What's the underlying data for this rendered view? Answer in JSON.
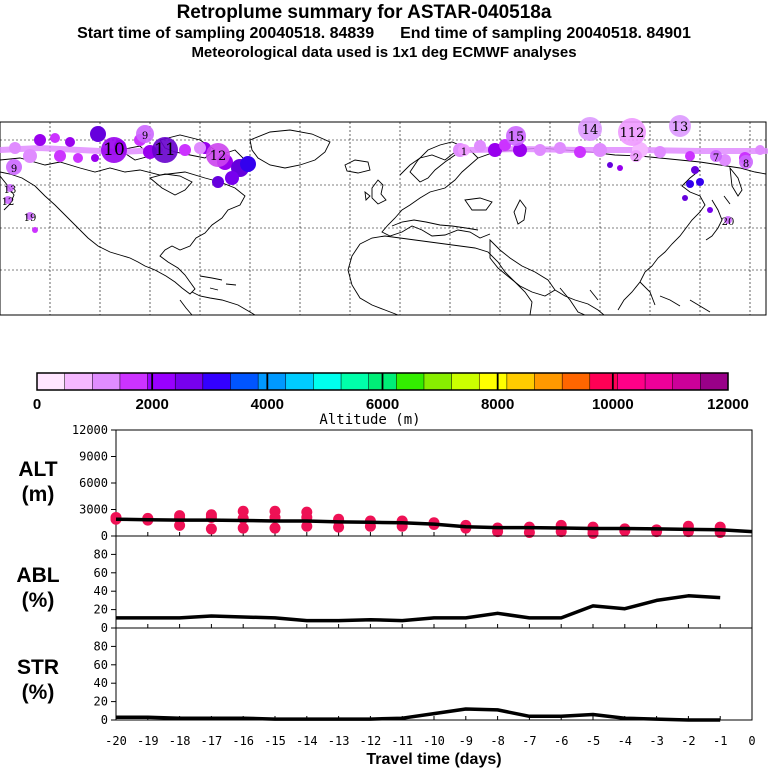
{
  "header": {
    "title": "Retroplume summary for ASTAR-040518a",
    "start_label": "Start time of sampling 20040518. 84839",
    "end_label": "End time of sampling 20040518. 84901",
    "met_label": "Meteorological data used is 1x1 deg ECMWF analyses"
  },
  "map": {
    "markers": [
      {
        "label": "9",
        "color": "#cc66ff",
        "r": "small"
      },
      {
        "label": "10",
        "color": "#9900ee",
        "r": "large"
      },
      {
        "label": "11",
        "color": "#6600cc",
        "r": "large"
      },
      {
        "label": "12",
        "color": "#cc44ee",
        "r": "medium"
      },
      {
        "label": "13",
        "color": "#dd99ff",
        "r": "medium"
      },
      {
        "label": "14",
        "color": "#dd99ff",
        "r": "medium"
      },
      {
        "label": "15",
        "color": "#cc66ff",
        "r": "medium"
      },
      {
        "label": "112",
        "color": "#ee99ff",
        "r": "medium"
      },
      {
        "label": "9",
        "color": "#cc66ff",
        "r": "small"
      },
      {
        "label": "8",
        "color": "#cc66ff",
        "r": "small"
      },
      {
        "label": "7",
        "color": "#cc66ff",
        "r": "small"
      },
      {
        "label": "2",
        "color": "#ee99ff",
        "r": "small"
      },
      {
        "label": "1",
        "color": "#ee99ff",
        "r": "small"
      },
      {
        "label": "12",
        "color": "#cc66ff",
        "r": "small"
      },
      {
        "label": "13",
        "color": "#cc66ff",
        "r": "small"
      },
      {
        "label": "19",
        "color": "#cc66ff",
        "r": "small"
      },
      {
        "label": "20",
        "color": "#cc66ff",
        "r": "small"
      }
    ]
  },
  "colorbar": {
    "label": "Altitude (m)",
    "ticks": [
      "0",
      "2000",
      "4000",
      "6000",
      "8000",
      "10000",
      "12000"
    ],
    "colors": [
      "#ffe6ff",
      "#f5b8ff",
      "#e08cff",
      "#cc33ff",
      "#9900ff",
      "#7700ee",
      "#3300ff",
      "#0055ff",
      "#0099ff",
      "#00ccff",
      "#00ffee",
      "#00ffaa",
      "#00ee77",
      "#33ee00",
      "#88ee00",
      "#ccff00",
      "#ffff00",
      "#ffcc00",
      "#ff9900",
      "#ff6600",
      "#ff0055",
      "#ff0088",
      "#ee0099",
      "#cc0099",
      "#990088"
    ]
  },
  "chart_data": [
    {
      "type": "line",
      "name": "ALT",
      "ylabel": "ALT",
      "yunit": "(m)",
      "ylim": [
        0,
        12000
      ],
      "yticks": [
        "0",
        "3000",
        "6000",
        "9000",
        "12000"
      ],
      "x": [
        -20,
        -19,
        -18,
        -17,
        -16,
        -15,
        -14,
        -13,
        -12,
        -11,
        -10,
        -9,
        -8,
        -7,
        -6,
        -5,
        -4,
        -3,
        -2,
        -1,
        0
      ],
      "values": [
        1900,
        1850,
        1800,
        1800,
        1750,
        1700,
        1700,
        1600,
        1550,
        1500,
        1350,
        1050,
        950,
        950,
        900,
        850,
        850,
        800,
        750,
        700,
        500
      ],
      "points_color": "#ee1155",
      "points": [
        [
          -20,
          1900
        ],
        [
          -20,
          2100
        ],
        [
          -19,
          1800
        ],
        [
          -19,
          2000
        ],
        [
          -18,
          1200
        ],
        [
          -18,
          2000
        ],
        [
          -18,
          2300
        ],
        [
          -17,
          800
        ],
        [
          -17,
          2100
        ],
        [
          -17,
          2400
        ],
        [
          -16,
          900
        ],
        [
          -16,
          2000
        ],
        [
          -16,
          2800
        ],
        [
          -15,
          900
        ],
        [
          -15,
          2100
        ],
        [
          -15,
          2800
        ],
        [
          -14,
          1100
        ],
        [
          -14,
          2100
        ],
        [
          -14,
          2700
        ],
        [
          -13,
          1000
        ],
        [
          -13,
          1700
        ],
        [
          -13,
          1900
        ],
        [
          -12,
          1100
        ],
        [
          -12,
          1700
        ],
        [
          -11,
          1100
        ],
        [
          -11,
          1600
        ],
        [
          -11,
          1700
        ],
        [
          -10,
          1300
        ],
        [
          -10,
          1500
        ],
        [
          -9,
          900
        ],
        [
          -9,
          1200
        ],
        [
          -8,
          500
        ],
        [
          -8,
          900
        ],
        [
          -7,
          400
        ],
        [
          -7,
          1000
        ],
        [
          -6,
          500
        ],
        [
          -6,
          900
        ],
        [
          -6,
          1200
        ],
        [
          -5,
          300
        ],
        [
          -5,
          700
        ],
        [
          -5,
          1000
        ],
        [
          -4,
          600
        ],
        [
          -4,
          800
        ],
        [
          -3,
          500
        ],
        [
          -3,
          700
        ],
        [
          -2,
          500
        ],
        [
          -2,
          1100
        ],
        [
          -1,
          400
        ],
        [
          -1,
          1000
        ]
      ]
    },
    {
      "type": "line",
      "name": "ABL",
      "ylabel": "ABL",
      "yunit": "(%)",
      "ylim": [
        0,
        100
      ],
      "yticks": [
        "0",
        "20",
        "40",
        "60",
        "80"
      ],
      "x": [
        -20,
        -19,
        -18,
        -17,
        -16,
        -15,
        -14,
        -13,
        -12,
        -11,
        -10,
        -9,
        -8,
        -7,
        -6,
        -5,
        -4,
        -3,
        -2,
        -1
      ],
      "values": [
        11,
        11,
        11,
        13,
        12,
        11,
        8,
        8,
        9,
        8,
        11,
        11,
        16,
        11,
        11,
        24,
        21,
        30,
        35,
        33
      ]
    },
    {
      "type": "line",
      "name": "STR",
      "ylabel": "STR",
      "yunit": "(%)",
      "ylim": [
        0,
        100
      ],
      "yticks": [
        "0",
        "20",
        "40",
        "60",
        "80"
      ],
      "x": [
        -20,
        -19,
        -18,
        -17,
        -16,
        -15,
        -14,
        -13,
        -12,
        -11,
        -10,
        -9,
        -8,
        -7,
        -6,
        -5,
        -4,
        -3,
        -2,
        -1
      ],
      "values": [
        3,
        3,
        2,
        2,
        2,
        1,
        1,
        1,
        1,
        2,
        7,
        12,
        11,
        4,
        4,
        6,
        2,
        1,
        0,
        0
      ],
      "xlabel": "Travel time (days)",
      "xticks": [
        "-20",
        "-19",
        "-18",
        "-17",
        "-16",
        "-15",
        "-14",
        "-13",
        "-12",
        "-11",
        "-10",
        "-9",
        "-8",
        "-7",
        "-6",
        "-5",
        "-4",
        "-3",
        "-2",
        "-1",
        "0"
      ]
    }
  ]
}
